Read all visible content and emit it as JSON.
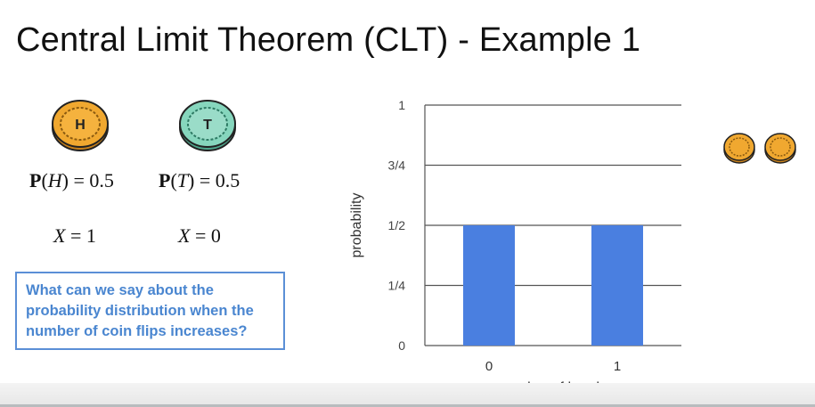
{
  "slide": {
    "title": "Central Limit Theorem (CLT) - Example 1"
  },
  "coins": {
    "heads": {
      "letter": "H",
      "color": "#e8a22f",
      "prob_lhs_bold": "P",
      "prob_arg": "H",
      "prob_rhs": "0.5",
      "var": "X",
      "value": "1"
    },
    "tails": {
      "letter": "T",
      "color": "#7fcfb6",
      "prob_lhs_bold": "P",
      "prob_arg": "T",
      "prob_rhs": "0.5",
      "var": "X",
      "value": "0"
    }
  },
  "callout": {
    "text": "What can we say about the probability distribution when the number of coin flips increases?"
  },
  "chart_data": {
    "type": "bar",
    "categories": [
      "0",
      "1"
    ],
    "values": [
      0.5,
      0.5
    ],
    "xlabel": "number of heads",
    "ylabel": "probability",
    "ylim": [
      0,
      1
    ],
    "yticks": [
      0,
      0.25,
      0.5,
      0.75,
      1
    ],
    "yticklabels": [
      "0",
      "1/4",
      "1/2",
      "3/4",
      "1"
    ],
    "grid": true,
    "bar_color": "#4a7fe0"
  },
  "coin_count_icons": 2
}
